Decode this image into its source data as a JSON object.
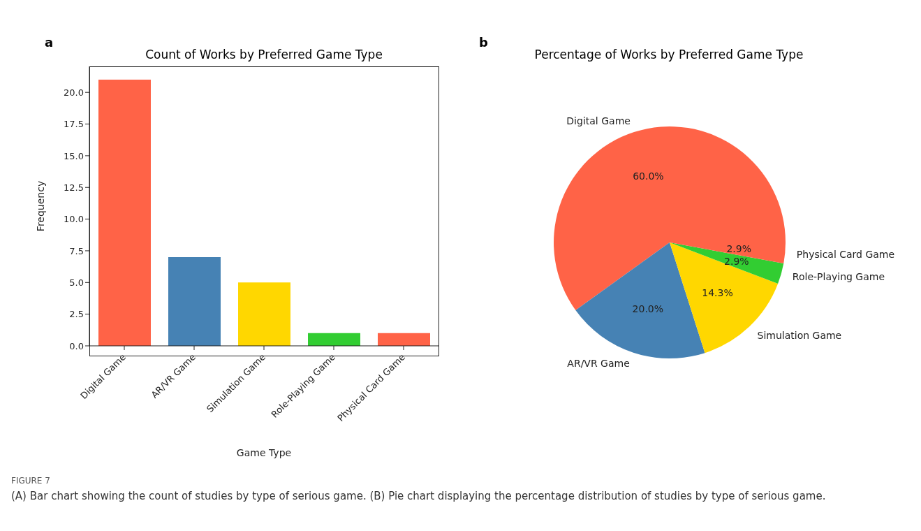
{
  "chart_data": [
    {
      "type": "bar",
      "title": "Count of Works by Preferred Game Type",
      "xlabel": "Game Type",
      "ylabel": "Frequency",
      "categories": [
        "Digital Game",
        "AR/VR Game",
        "Simulation Game",
        "Role-Playing Game",
        "Physical Card Game"
      ],
      "values": [
        21,
        7,
        5,
        1,
        1
      ],
      "colors": [
        "#ff6347",
        "#4682b4",
        "#ffd700",
        "#32cd32",
        "#ff6347"
      ],
      "ylim": [
        0,
        22.05
      ],
      "yticks": [
        {
          "value": 0,
          "label": "0.0"
        },
        {
          "value": 2.5,
          "label": "2.5"
        },
        {
          "value": 5,
          "label": "5.0"
        },
        {
          "value": 7.5,
          "label": "7.5"
        },
        {
          "value": 10,
          "label": "10.0"
        },
        {
          "value": 12.5,
          "label": "12.5"
        },
        {
          "value": 15,
          "label": "15.0"
        },
        {
          "value": 17.5,
          "label": "17.5"
        },
        {
          "value": 20,
          "label": "20.0"
        }
      ],
      "grid": false,
      "legend": false,
      "annotations": [
        "a",
        "FIGURE 7",
        "(A) Bar chart showing the count of studies by type of serious game. (B) Pie chart displaying the percentage distribution of studies by type of serious game."
      ]
    },
    {
      "type": "pie",
      "title": "Percentage of Works by Preferred Game Type",
      "categories": [
        "Digital Game",
        "AR/VR Game",
        "Simulation Game",
        "Role-Playing Game",
        "Physical Card Game"
      ],
      "values": [
        60.0,
        20.0,
        14.3,
        2.9,
        2.9
      ],
      "colors": [
        "#ff6347",
        "#4682b4",
        "#ffd700",
        "#32cd32",
        "#ff6347"
      ],
      "value_labels": [
        "60.0%",
        "20.0%",
        "14.3%",
        "2.9%",
        "2.9%"
      ],
      "legend": false,
      "annotations": [
        "b"
      ]
    }
  ]
}
